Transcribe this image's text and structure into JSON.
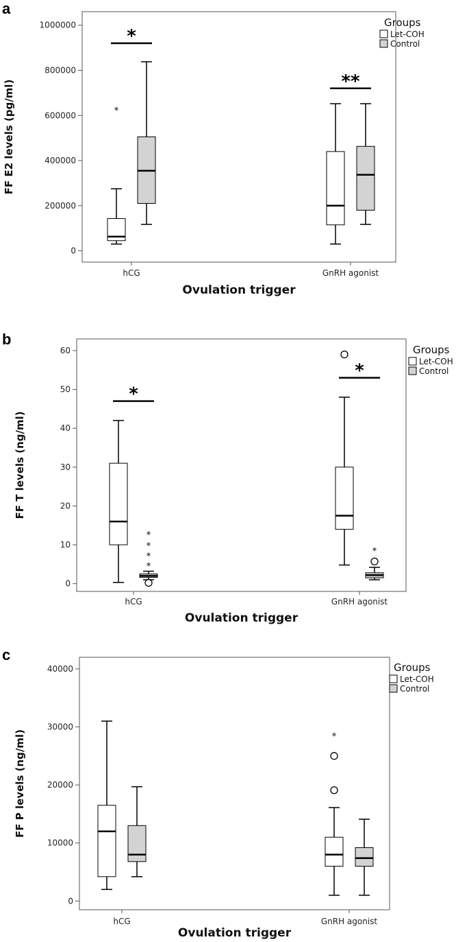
{
  "colors": {
    "let_coh": "#ffffff",
    "control": "#d3d3d3",
    "line": "#000000"
  },
  "legend": {
    "title": "Groups",
    "items": [
      "Let-COH",
      "Control"
    ]
  },
  "xlabel": "Ovulation trigger",
  "chart_data": [
    {
      "type": "box",
      "panel": "a",
      "ylabel": "FF E2 levels (pg/ml)",
      "categories": [
        "hCG",
        "GnRH agonist"
      ],
      "ylim": [
        -50000,
        1060000
      ],
      "yticks": [
        0,
        200000,
        400000,
        600000,
        800000,
        1000000
      ],
      "ytick_labels": [
        "0",
        "200000",
        "400000",
        "600000",
        "800000",
        "1000000"
      ],
      "series": [
        {
          "name": "Let-COH",
          "boxes": [
            {
              "min": 30000,
              "q1": 45000,
              "median": 63000,
              "q3": 143000,
              "max": 275000,
              "outliers": [],
              "extremes": [
                630000
              ]
            },
            {
              "min": 30000,
              "q1": 115000,
              "median": 200000,
              "q3": 440000,
              "max": 652000,
              "outliers": [],
              "extremes": []
            }
          ]
        },
        {
          "name": "Control",
          "boxes": [
            {
              "min": 117000,
              "q1": 210000,
              "median": 355000,
              "q3": 505000,
              "max": 838000,
              "outliers": [],
              "extremes": []
            },
            {
              "min": 117000,
              "q1": 180000,
              "median": 337000,
              "q3": 463000,
              "max": 652000,
              "outliers": [],
              "extremes": []
            }
          ]
        }
      ],
      "significance": [
        {
          "label": "*",
          "category": 0,
          "y": 920000
        },
        {
          "label": "**",
          "category": 1,
          "y": 720000
        }
      ]
    },
    {
      "type": "box",
      "panel": "b",
      "ylabel": "FF T levels (ng/ml)",
      "categories": [
        "hCG",
        "GnRH agonist"
      ],
      "ylim": [
        -2,
        63
      ],
      "yticks": [
        0,
        10,
        20,
        30,
        40,
        50,
        60
      ],
      "ytick_labels": [
        "0",
        "10",
        "20",
        "30",
        "40",
        "50",
        "60"
      ],
      "series": [
        {
          "name": "Let-COH",
          "boxes": [
            {
              "min": 0.3,
              "q1": 10,
              "median": 16,
              "q3": 31,
              "max": 42,
              "outliers": [],
              "extremes": []
            },
            {
              "min": 4.8,
              "q1": 14,
              "median": 17.5,
              "q3": 30,
              "max": 48,
              "outliers": [
                59
              ],
              "extremes": []
            }
          ]
        },
        {
          "name": "Control",
          "boxes": [
            {
              "min": 1.0,
              "q1": 1.6,
              "median": 2.0,
              "q3": 2.5,
              "max": 3.2,
              "outliers": [
                0.2
              ],
              "extremes": [
                5.0,
                7.5,
                10.2,
                13
              ]
            },
            {
              "min": 1.0,
              "q1": 1.5,
              "median": 2.2,
              "q3": 2.8,
              "max": 4.2,
              "outliers": [
                5.7
              ],
              "extremes": [
                8.9
              ]
            }
          ]
        }
      ],
      "significance": [
        {
          "label": "*",
          "category": 0,
          "y": 47
        },
        {
          "label": "*",
          "category": 1,
          "y": 53
        }
      ]
    },
    {
      "type": "box",
      "panel": "c",
      "ylabel": "FF P levels (ng/ml)",
      "categories": [
        "hCG",
        "GnRH agonist"
      ],
      "ylim": [
        -1500,
        42000
      ],
      "yticks": [
        0,
        10000,
        20000,
        30000,
        40000
      ],
      "ytick_labels": [
        "0",
        "10000",
        "20000",
        "30000",
        "40000"
      ],
      "series": [
        {
          "name": "Let-COH",
          "boxes": [
            {
              "min": 2000,
              "q1": 4200,
              "median": 12000,
              "q3": 16500,
              "max": 31000,
              "outliers": [],
              "extremes": []
            },
            {
              "min": 1000,
              "q1": 6000,
              "median": 8000,
              "q3": 11000,
              "max": 16100,
              "outliers": [
                19100,
                25000
              ],
              "extremes": [
                28700
              ]
            }
          ]
        },
        {
          "name": "Control",
          "boxes": [
            {
              "min": 4200,
              "q1": 6800,
              "median": 8000,
              "q3": 13000,
              "max": 19700,
              "outliers": [],
              "extremes": []
            },
            {
              "min": 1000,
              "q1": 6000,
              "median": 7400,
              "q3": 9200,
              "max": 14100,
              "outliers": [],
              "extremes": []
            }
          ]
        }
      ],
      "significance": []
    }
  ]
}
